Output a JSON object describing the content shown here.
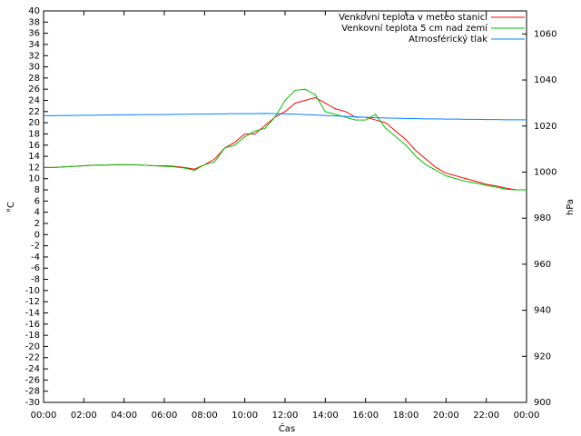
{
  "chart_data": {
    "type": "line",
    "x_label": "Čas",
    "y_label": "°C",
    "y2_label": "hPa",
    "x": [
      0,
      0.5,
      1,
      1.5,
      2,
      2.5,
      3,
      3.5,
      4,
      4.5,
      5,
      5.5,
      6,
      6.5,
      7,
      7.5,
      8,
      8.5,
      9,
      9.5,
      10,
      10.5,
      11,
      11.5,
      12,
      12.5,
      13,
      13.5,
      14,
      14.5,
      15,
      15.5,
      16,
      16.5,
      17,
      17.5,
      18,
      18.5,
      19,
      19.5,
      20,
      20.5,
      21,
      21.5,
      22,
      22.5,
      23,
      23.5,
      24
    ],
    "xlim": [
      0,
      24
    ],
    "xticks": [
      {
        "value": 0,
        "label": "00:00"
      },
      {
        "value": 2,
        "label": "02:00"
      },
      {
        "value": 4,
        "label": "04:00"
      },
      {
        "value": 6,
        "label": "06:00"
      },
      {
        "value": 8,
        "label": "08:00"
      },
      {
        "value": 10,
        "label": "10:00"
      },
      {
        "value": 12,
        "label": "12:00"
      },
      {
        "value": 14,
        "label": "14:00"
      },
      {
        "value": 16,
        "label": "16:00"
      },
      {
        "value": 18,
        "label": "18:00"
      },
      {
        "value": 20,
        "label": "20:00"
      },
      {
        "value": 22,
        "label": "22:00"
      },
      {
        "value": 24,
        "label": "00:00"
      }
    ],
    "ylim": [
      -30,
      40
    ],
    "yticks": [
      -30,
      -28,
      -26,
      -24,
      -22,
      -20,
      -18,
      -16,
      -14,
      -12,
      -10,
      -8,
      -6,
      -4,
      -2,
      0,
      2,
      4,
      6,
      8,
      10,
      12,
      14,
      16,
      18,
      20,
      22,
      24,
      26,
      28,
      30,
      32,
      34,
      36,
      38,
      40
    ],
    "y2lim": [
      900,
      1070
    ],
    "y2ticks": [
      900,
      920,
      940,
      960,
      980,
      1000,
      1020,
      1040,
      1060
    ],
    "legend": "top right",
    "series": [
      {
        "name": "Venkovní teplota v meteo stanici",
        "color": "#ff0000",
        "values": [
          12,
          12,
          12.1,
          12.2,
          12.3,
          12.4,
          12.4,
          12.5,
          12.5,
          12.5,
          12.4,
          12.3,
          12.3,
          12.2,
          12,
          11.7,
          12.5,
          13.5,
          15.5,
          16.5,
          18,
          18,
          19.5,
          21,
          22,
          23.5,
          24,
          24.5,
          23.5,
          22.5,
          22,
          21,
          21,
          20.5,
          20,
          18.5,
          17,
          15,
          13.5,
          12,
          11,
          10.5,
          10,
          9.5,
          9,
          8.7,
          8.3,
          8,
          8
        ]
      },
      {
        "name": "Venkovní teplota 5 cm nad zemí",
        "color": "#00c000",
        "values": [
          12,
          12,
          12.1,
          12.2,
          12.3,
          12.4,
          12.4,
          12.5,
          12.5,
          12.5,
          12.4,
          12.3,
          12.2,
          12.1,
          11.9,
          11.5,
          12.5,
          13,
          15.5,
          16,
          17.5,
          18.5,
          19,
          21,
          24,
          25.8,
          26,
          25,
          22,
          21.5,
          21,
          20.5,
          20.5,
          21.5,
          19,
          17.5,
          16,
          14,
          12.5,
          11.5,
          10.5,
          10,
          9.5,
          9.2,
          8.8,
          8.5,
          8.1,
          8,
          8
        ]
      },
      {
        "name": "Atmosférický tlak",
        "color": "#0080ff",
        "axis": "y2",
        "values": [
          1024.5,
          1024.5,
          1024.6,
          1024.6,
          1024.7,
          1024.7,
          1024.8,
          1024.8,
          1024.9,
          1024.9,
          1025.0,
          1025.0,
          1025.0,
          1025.1,
          1025.1,
          1025.2,
          1025.2,
          1025.3,
          1025.3,
          1025.4,
          1025.4,
          1025.4,
          1025.5,
          1025.4,
          1025.3,
          1025.2,
          1025.0,
          1024.8,
          1024.6,
          1024.4,
          1024.2,
          1024.0,
          1023.8,
          1023.6,
          1023.5,
          1023.4,
          1023.3,
          1023.2,
          1023.1,
          1023.1,
          1023.0,
          1023.0,
          1022.9,
          1022.9,
          1022.8,
          1022.8,
          1022.7,
          1022.7,
          1022.7
        ]
      }
    ]
  }
}
